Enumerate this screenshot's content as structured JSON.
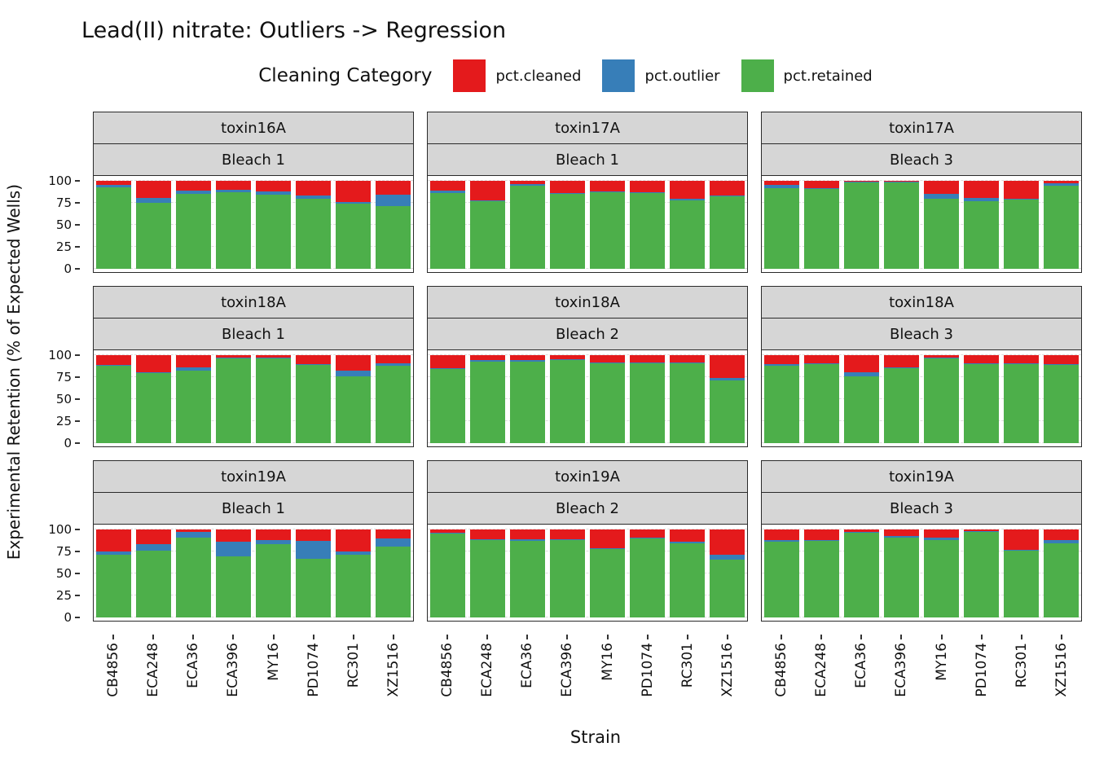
{
  "chart_data": {
    "type": "bar",
    "variant": "stacked-percent-faceted",
    "title": "Lead(II) nitrate: Outliers -> Regression",
    "legend_title": "Cleaning Category",
    "xlabel": "Strain",
    "ylabel": "Experimental Retention (% of Expected Wells)",
    "ylim": [
      0,
      100
    ],
    "y_ticks": [
      0,
      25,
      50,
      75,
      100
    ],
    "legend_position": "top",
    "grid": "dashed-horizontal",
    "strip_color": "#d6d6d6",
    "series": [
      {
        "name": "pct.cleaned",
        "color": "#E41A1C"
      },
      {
        "name": "pct.outlier",
        "color": "#377EB8"
      },
      {
        "name": "pct.retained",
        "color": "#4DAF4A"
      }
    ],
    "stack_order_bottom_to_top": [
      "pct.retained",
      "pct.outlier",
      "pct.cleaned"
    ],
    "categories": [
      "CB4856",
      "ECA248",
      "ECA36",
      "ECA396",
      "MY16",
      "PD1074",
      "RC301",
      "XZ1516"
    ],
    "facets": [
      {
        "toxin": "toxin16A",
        "bleach": "Bleach 1",
        "values": [
          {
            "retained": 93,
            "outlier": 2,
            "cleaned": 5
          },
          {
            "retained": 75,
            "outlier": 6,
            "cleaned": 19
          },
          {
            "retained": 85,
            "outlier": 4,
            "cleaned": 11
          },
          {
            "retained": 87,
            "outlier": 3,
            "cleaned": 10
          },
          {
            "retained": 84,
            "outlier": 4,
            "cleaned": 12
          },
          {
            "retained": 80,
            "outlier": 3,
            "cleaned": 17
          },
          {
            "retained": 74,
            "outlier": 2,
            "cleaned": 24
          },
          {
            "retained": 71,
            "outlier": 13,
            "cleaned": 16
          }
        ]
      },
      {
        "toxin": "toxin17A",
        "bleach": "Bleach 1",
        "values": [
          {
            "retained": 86,
            "outlier": 3,
            "cleaned": 11
          },
          {
            "retained": 77,
            "outlier": 1,
            "cleaned": 22
          },
          {
            "retained": 94,
            "outlier": 2,
            "cleaned": 4
          },
          {
            "retained": 85,
            "outlier": 1,
            "cleaned": 14
          },
          {
            "retained": 87,
            "outlier": 1,
            "cleaned": 12
          },
          {
            "retained": 86,
            "outlier": 1,
            "cleaned": 13
          },
          {
            "retained": 78,
            "outlier": 2,
            "cleaned": 20
          },
          {
            "retained": 82,
            "outlier": 1,
            "cleaned": 17
          }
        ]
      },
      {
        "toxin": "toxin17A",
        "bleach": "Bleach 3",
        "values": [
          {
            "retained": 92,
            "outlier": 3,
            "cleaned": 5
          },
          {
            "retained": 91,
            "outlier": 1,
            "cleaned": 8
          },
          {
            "retained": 98,
            "outlier": 1,
            "cleaned": 1
          },
          {
            "retained": 98,
            "outlier": 1,
            "cleaned": 1
          },
          {
            "retained": 80,
            "outlier": 5,
            "cleaned": 15
          },
          {
            "retained": 77,
            "outlier": 4,
            "cleaned": 19
          },
          {
            "retained": 79,
            "outlier": 1,
            "cleaned": 20
          },
          {
            "retained": 94,
            "outlier": 3,
            "cleaned": 3
          }
        ]
      },
      {
        "toxin": "toxin18A",
        "bleach": "Bleach 1",
        "values": [
          {
            "retained": 88,
            "outlier": 1,
            "cleaned": 11
          },
          {
            "retained": 80,
            "outlier": 1,
            "cleaned": 19
          },
          {
            "retained": 82,
            "outlier": 4,
            "cleaned": 14
          },
          {
            "retained": 96,
            "outlier": 1,
            "cleaned": 3
          },
          {
            "retained": 96,
            "outlier": 1,
            "cleaned": 3
          },
          {
            "retained": 89,
            "outlier": 1,
            "cleaned": 10
          },
          {
            "retained": 76,
            "outlier": 6,
            "cleaned": 18
          },
          {
            "retained": 88,
            "outlier": 3,
            "cleaned": 9
          }
        ]
      },
      {
        "toxin": "toxin18A",
        "bleach": "Bleach 2",
        "values": [
          {
            "retained": 84,
            "outlier": 1,
            "cleaned": 15
          },
          {
            "retained": 93,
            "outlier": 1,
            "cleaned": 6
          },
          {
            "retained": 93,
            "outlier": 1,
            "cleaned": 6
          },
          {
            "retained": 94,
            "outlier": 1,
            "cleaned": 5
          },
          {
            "retained": 91,
            "outlier": 1,
            "cleaned": 8
          },
          {
            "retained": 91,
            "outlier": 1,
            "cleaned": 8
          },
          {
            "retained": 91,
            "outlier": 1,
            "cleaned": 8
          },
          {
            "retained": 71,
            "outlier": 3,
            "cleaned": 26
          }
        ]
      },
      {
        "toxin": "toxin18A",
        "bleach": "Bleach 3",
        "values": [
          {
            "retained": 88,
            "outlier": 2,
            "cleaned": 10
          },
          {
            "retained": 90,
            "outlier": 1,
            "cleaned": 9
          },
          {
            "retained": 76,
            "outlier": 5,
            "cleaned": 19
          },
          {
            "retained": 85,
            "outlier": 1,
            "cleaned": 14
          },
          {
            "retained": 96,
            "outlier": 1,
            "cleaned": 3
          },
          {
            "retained": 90,
            "outlier": 1,
            "cleaned": 9
          },
          {
            "retained": 90,
            "outlier": 1,
            "cleaned": 9
          },
          {
            "retained": 89,
            "outlier": 1,
            "cleaned": 10
          }
        ]
      },
      {
        "toxin": "toxin19A",
        "bleach": "Bleach 1",
        "values": [
          {
            "retained": 71,
            "outlier": 4,
            "cleaned": 25
          },
          {
            "retained": 76,
            "outlier": 7,
            "cleaned": 17
          },
          {
            "retained": 91,
            "outlier": 6,
            "cleaned": 3
          },
          {
            "retained": 69,
            "outlier": 17,
            "cleaned": 14
          },
          {
            "retained": 83,
            "outlier": 5,
            "cleaned": 12
          },
          {
            "retained": 67,
            "outlier": 20,
            "cleaned": 13
          },
          {
            "retained": 71,
            "outlier": 4,
            "cleaned": 25
          },
          {
            "retained": 81,
            "outlier": 9,
            "cleaned": 10
          }
        ]
      },
      {
        "toxin": "toxin19A",
        "bleach": "Bleach 2",
        "values": [
          {
            "retained": 95,
            "outlier": 1,
            "cleaned": 4
          },
          {
            "retained": 88,
            "outlier": 1,
            "cleaned": 11
          },
          {
            "retained": 87,
            "outlier": 2,
            "cleaned": 11
          },
          {
            "retained": 88,
            "outlier": 1,
            "cleaned": 11
          },
          {
            "retained": 78,
            "outlier": 1,
            "cleaned": 21
          },
          {
            "retained": 90,
            "outlier": 1,
            "cleaned": 9
          },
          {
            "retained": 84,
            "outlier": 2,
            "cleaned": 14
          },
          {
            "retained": 66,
            "outlier": 5,
            "cleaned": 29
          }
        ]
      },
      {
        "toxin": "toxin19A",
        "bleach": "Bleach 3",
        "values": [
          {
            "retained": 86,
            "outlier": 2,
            "cleaned": 12
          },
          {
            "retained": 87,
            "outlier": 1,
            "cleaned": 12
          },
          {
            "retained": 96,
            "outlier": 1,
            "cleaned": 3
          },
          {
            "retained": 91,
            "outlier": 2,
            "cleaned": 7
          },
          {
            "retained": 88,
            "outlier": 3,
            "cleaned": 9
          },
          {
            "retained": 97,
            "outlier": 1,
            "cleaned": 2
          },
          {
            "retained": 76,
            "outlier": 1,
            "cleaned": 23
          },
          {
            "retained": 84,
            "outlier": 4,
            "cleaned": 12
          }
        ]
      }
    ]
  }
}
